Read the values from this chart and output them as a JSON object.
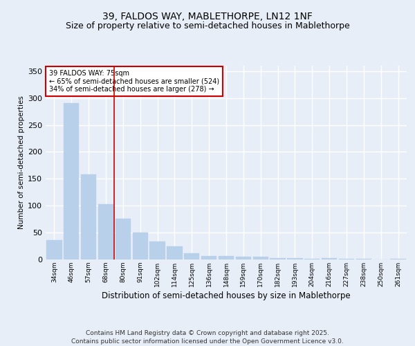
{
  "title1": "39, FALDOS WAY, MABLETHORPE, LN12 1NF",
  "title2": "Size of property relative to semi-detached houses in Mablethorpe",
  "xlabel": "Distribution of semi-detached houses by size in Mablethorpe",
  "ylabel": "Number of semi-detached properties",
  "categories": [
    "34sqm",
    "46sqm",
    "57sqm",
    "68sqm",
    "80sqm",
    "91sqm",
    "102sqm",
    "114sqm",
    "125sqm",
    "136sqm",
    "148sqm",
    "159sqm",
    "170sqm",
    "182sqm",
    "193sqm",
    "204sqm",
    "216sqm",
    "227sqm",
    "238sqm",
    "250sqm",
    "261sqm"
  ],
  "values": [
    36,
    290,
    158,
    103,
    76,
    50,
    34,
    24,
    11,
    7,
    6,
    5,
    5,
    3,
    2,
    1,
    2,
    1,
    1,
    0,
    1
  ],
  "bar_color": "#b8d0ea",
  "bar_edge_color": "#b8d0ea",
  "vline_x": 3.5,
  "vline_color": "#cc0000",
  "annotation_text": "39 FALDOS WAY: 75sqm\n← 65% of semi-detached houses are smaller (524)\n34% of semi-detached houses are larger (278) →",
  "annotation_box_color": "#ffffff",
  "annotation_box_edge": "#cc0000",
  "footer": "Contains HM Land Registry data © Crown copyright and database right 2025.\nContains public sector information licensed under the Open Government Licence v3.0.",
  "ylim": [
    0,
    360
  ],
  "background_color": "#e8eef8",
  "plot_background": "#e8eef8",
  "grid_color": "#ffffff",
  "title_fontsize": 10,
  "subtitle_fontsize": 9,
  "footer_fontsize": 6.5
}
